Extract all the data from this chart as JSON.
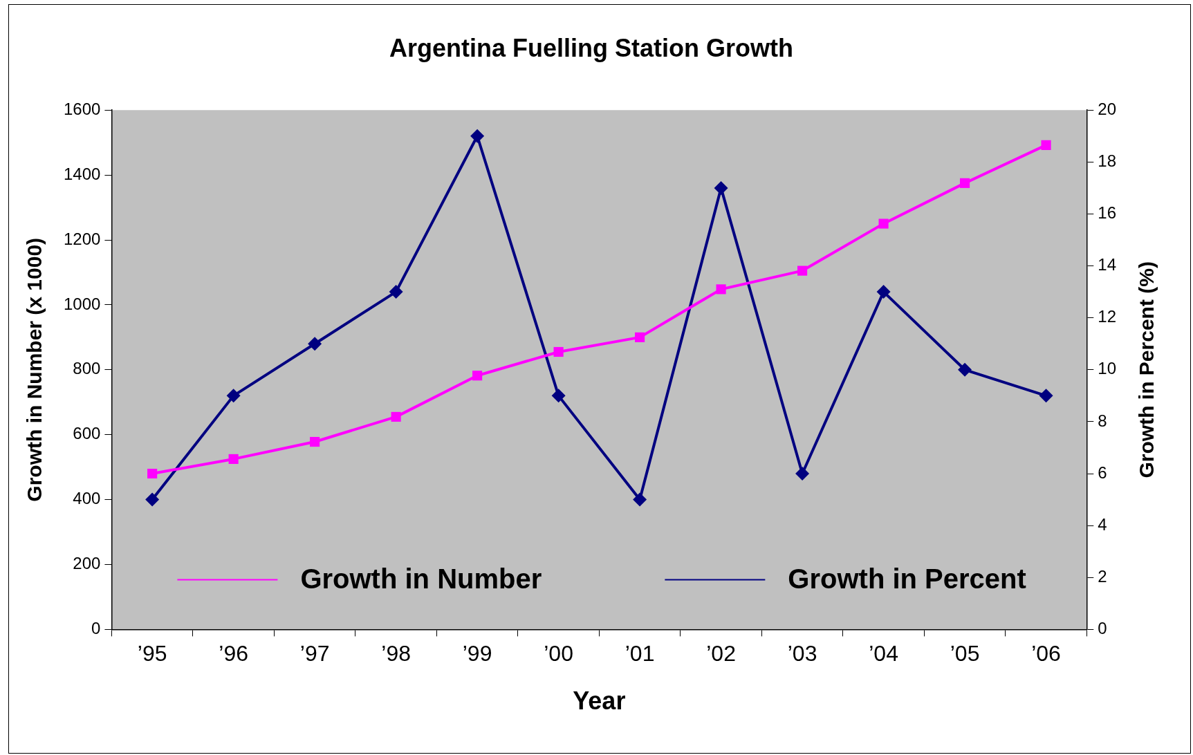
{
  "chart_data": {
    "type": "line",
    "title": "Argentina Fuelling Station Growth",
    "xlabel": "Year",
    "ylabel": "Growth in Number (x 1000)",
    "y2label": "Growth in Percent (%)",
    "categories": [
      "’95",
      "’96",
      "’97",
      "’98",
      "’99",
      "’00",
      "’01",
      "’02",
      "’03",
      "’04",
      "’05",
      "’06"
    ],
    "series": [
      {
        "name": "Growth in Number",
        "color": "#ff00ff",
        "marker": "square",
        "values": [
          480,
          525,
          578,
          655,
          782,
          855,
          900,
          1048,
          1105,
          1250,
          1375,
          1492
        ]
      },
      {
        "name": "Growth in Percent",
        "color": "#000080",
        "marker": "diamond",
        "axis": "y2",
        "values": [
          5,
          9,
          11,
          13,
          19,
          9,
          5,
          17,
          6,
          13,
          10,
          9
        ]
      }
    ],
    "ylim": [
      0,
      1600
    ],
    "yticks": [
      0,
      200,
      400,
      600,
      800,
      1000,
      1200,
      1400,
      1600
    ],
    "y2lim": [
      0,
      20
    ],
    "y2ticks": [
      0,
      2,
      4,
      6,
      8,
      10,
      12,
      14,
      16,
      18,
      20
    ],
    "grid": false,
    "legend": "bottom"
  }
}
